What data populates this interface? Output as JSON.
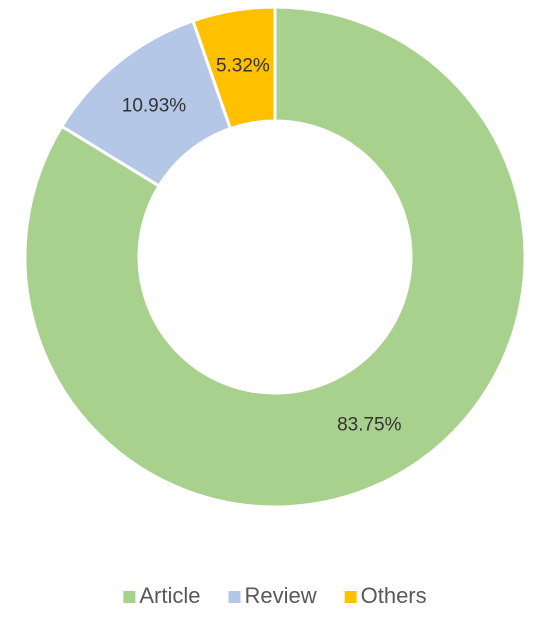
{
  "chart_data": {
    "type": "donut",
    "categories": [
      "Article",
      "Review",
      "Others"
    ],
    "values": [
      83.75,
      10.93,
      5.32
    ],
    "value_labels": [
      "83.75%",
      "10.93%",
      "5.32%"
    ],
    "colors": [
      "#a9d18e",
      "#b4c7e7",
      "#ffc000"
    ],
    "legend": "bottom"
  }
}
